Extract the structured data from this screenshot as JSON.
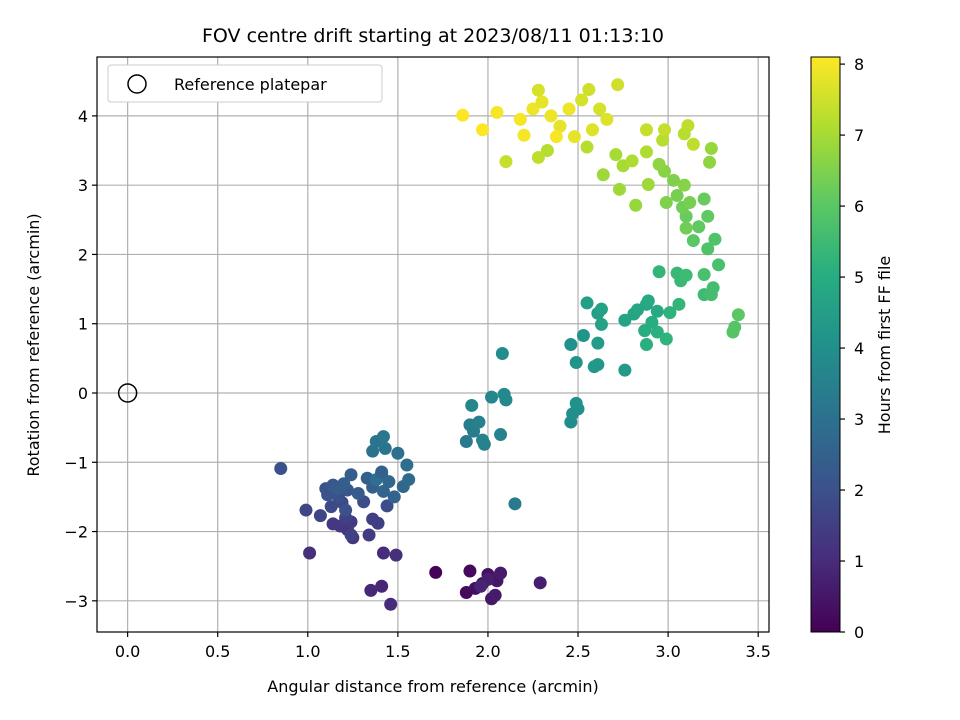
{
  "chart_data": {
    "type": "scatter",
    "title": "FOV centre drift starting at 2023/08/11 01:13:10",
    "xlabel": "Angular distance from reference (arcmin)",
    "ylabel": "Rotation from reference (arcmin)",
    "xlim": [
      -0.17,
      3.56
    ],
    "ylim": [
      -3.45,
      4.85
    ],
    "xticks": [
      0.0,
      0.5,
      1.0,
      1.5,
      2.0,
      2.5,
      3.0,
      3.5
    ],
    "xtick_labels": [
      "0.0",
      "0.5",
      "1.0",
      "1.5",
      "2.0",
      "2.5",
      "3.0",
      "3.5"
    ],
    "yticks": [
      -3,
      -2,
      -1,
      0,
      1,
      2,
      3,
      4
    ],
    "ytick_labels": [
      "−3",
      "−2",
      "−1",
      "0",
      "1",
      "2",
      "3",
      "4"
    ],
    "grid": true,
    "legend": {
      "placement": "top-left",
      "entries": [
        {
          "label": "Reference platepar",
          "marker": "open-circle"
        }
      ]
    },
    "reference": {
      "x": 0.0,
      "y": 0.0
    },
    "colorbar": {
      "label": "Hours from first FF file",
      "colormap": "viridis",
      "range": [
        0,
        8.1
      ],
      "ticks": [
        0,
        1,
        2,
        3,
        4,
        5,
        6,
        7,
        8
      ],
      "tick_labels": [
        "0",
        "1",
        "2",
        "3",
        "4",
        "5",
        "6",
        "7",
        "8"
      ]
    },
    "points": [
      [
        1.71,
        -2.59,
        0.1
      ],
      [
        1.88,
        -2.88,
        0.2
      ],
      [
        1.9,
        -2.57,
        0.2
      ],
      [
        1.93,
        -2.82,
        0.3
      ],
      [
        1.97,
        -2.75,
        0.4
      ],
      [
        2.0,
        -2.62,
        0.4
      ],
      [
        2.02,
        -2.97,
        0.5
      ],
      [
        2.05,
        -2.71,
        0.5
      ],
      [
        2.04,
        -2.92,
        0.6
      ],
      [
        2.07,
        -2.6,
        0.6
      ],
      [
        2.0,
        -2.69,
        0.7
      ],
      [
        2.29,
        -2.74,
        0.7
      ],
      [
        1.96,
        -2.79,
        0.8
      ],
      [
        1.41,
        -2.79,
        0.9
      ],
      [
        1.35,
        -2.85,
        0.9
      ],
      [
        1.46,
        -3.05,
        1.0
      ],
      [
        1.42,
        -2.31,
        1.0
      ],
      [
        1.49,
        -2.34,
        1.1
      ],
      [
        1.01,
        -2.31,
        1.1
      ],
      [
        1.25,
        -2.09,
        1.2
      ],
      [
        1.22,
        -1.97,
        1.2
      ],
      [
        1.14,
        -1.89,
        1.3
      ],
      [
        1.18,
        -1.92,
        1.3
      ],
      [
        1.24,
        -1.86,
        1.4
      ],
      [
        1.34,
        -2.05,
        1.4
      ],
      [
        1.39,
        -1.88,
        1.5
      ],
      [
        1.36,
        -1.82,
        1.5
      ],
      [
        1.24,
        -2.05,
        1.6
      ],
      [
        1.21,
        -1.8,
        1.6
      ],
      [
        0.99,
        -1.69,
        1.7
      ],
      [
        1.07,
        -1.77,
        1.7
      ],
      [
        1.13,
        -1.64,
        1.8
      ],
      [
        1.19,
        -1.58,
        1.8
      ],
      [
        1.31,
        -1.57,
        1.9
      ],
      [
        1.44,
        -1.63,
        1.9
      ],
      [
        1.21,
        -1.69,
        2.0
      ],
      [
        1.17,
        -1.5,
        2.0
      ],
      [
        1.11,
        -1.47,
        2.1
      ],
      [
        1.1,
        -1.38,
        2.1
      ],
      [
        1.14,
        -1.33,
        2.2
      ],
      [
        1.22,
        -1.4,
        2.2
      ],
      [
        1.28,
        -1.45,
        2.3
      ],
      [
        1.16,
        -1.38,
        2.3
      ],
      [
        1.2,
        -1.31,
        2.4
      ],
      [
        1.24,
        -1.18,
        2.4
      ],
      [
        1.33,
        -1.23,
        2.5
      ],
      [
        1.36,
        -1.36,
        2.5
      ],
      [
        1.42,
        -1.42,
        2.6
      ],
      [
        1.48,
        -1.5,
        2.6
      ],
      [
        1.45,
        -1.28,
        2.7
      ],
      [
        1.53,
        -1.35,
        2.7
      ],
      [
        1.56,
        -1.25,
        2.8
      ],
      [
        1.41,
        -1.16,
        2.8
      ],
      [
        1.38,
        -1.25,
        2.9
      ],
      [
        1.55,
        -1.04,
        2.9
      ],
      [
        1.5,
        -0.87,
        3.0
      ],
      [
        1.36,
        -0.84,
        3.0
      ],
      [
        1.43,
        -0.8,
        3.1
      ],
      [
        1.38,
        -0.7,
        3.1
      ],
      [
        1.42,
        -0.63,
        3.2
      ],
      [
        0.85,
        -1.09,
        2.0
      ],
      [
        1.41,
        -1.14,
        2.5
      ],
      [
        2.15,
        -1.6,
        3.3
      ],
      [
        1.88,
        -0.7,
        3.3
      ],
      [
        1.92,
        -0.55,
        3.4
      ],
      [
        1.9,
        -0.46,
        3.4
      ],
      [
        1.95,
        -0.42,
        3.5
      ],
      [
        1.98,
        -0.74,
        3.5
      ],
      [
        2.07,
        -0.6,
        3.6
      ],
      [
        1.97,
        -0.68,
        3.6
      ],
      [
        1.91,
        -0.18,
        3.7
      ],
      [
        2.02,
        -0.06,
        3.7
      ],
      [
        2.09,
        -0.02,
        3.8
      ],
      [
        2.1,
        -0.1,
        3.8
      ],
      [
        2.08,
        0.57,
        3.9
      ],
      [
        2.46,
        -0.42,
        3.9
      ],
      [
        2.47,
        -0.3,
        4.0
      ],
      [
        2.5,
        -0.23,
        4.0
      ],
      [
        2.49,
        -0.15,
        4.1
      ],
      [
        2.46,
        0.7,
        4.1
      ],
      [
        2.53,
        0.83,
        4.2
      ],
      [
        2.49,
        0.44,
        4.2
      ],
      [
        2.59,
        0.38,
        4.3
      ],
      [
        2.61,
        0.41,
        4.3
      ],
      [
        2.61,
        0.72,
        4.4
      ],
      [
        2.76,
        0.33,
        4.4
      ],
      [
        2.55,
        1.3,
        4.5
      ],
      [
        2.61,
        1.15,
        4.5
      ],
      [
        2.63,
        1.21,
        4.6
      ],
      [
        2.63,
        0.99,
        4.6
      ],
      [
        2.76,
        1.05,
        4.7
      ],
      [
        2.81,
        1.14,
        4.7
      ],
      [
        2.83,
        1.2,
        4.8
      ],
      [
        2.88,
        1.28,
        4.8
      ],
      [
        2.89,
        1.33,
        4.9
      ],
      [
        2.94,
        1.18,
        4.9
      ],
      [
        2.91,
        1.02,
        5.0
      ],
      [
        2.87,
        0.9,
        5.0
      ],
      [
        2.94,
        0.88,
        5.1
      ],
      [
        2.88,
        0.7,
        5.1
      ],
      [
        2.99,
        0.78,
        5.2
      ],
      [
        3.01,
        1.16,
        5.2
      ],
      [
        3.06,
        1.28,
        5.3
      ],
      [
        2.95,
        1.75,
        5.3
      ],
      [
        3.05,
        1.73,
        5.4
      ],
      [
        3.07,
        1.62,
        5.4
      ],
      [
        3.1,
        1.7,
        5.5
      ],
      [
        3.2,
        1.42,
        5.5
      ],
      [
        3.24,
        1.42,
        5.6
      ],
      [
        3.25,
        1.52,
        5.6
      ],
      [
        3.2,
        1.71,
        5.7
      ],
      [
        3.28,
        1.85,
        5.7
      ],
      [
        3.22,
        2.08,
        5.8
      ],
      [
        3.26,
        2.22,
        5.8
      ],
      [
        3.36,
        0.88,
        5.9
      ],
      [
        3.37,
        0.95,
        5.9
      ],
      [
        3.39,
        1.13,
        6.0
      ],
      [
        3.14,
        2.2,
        6.0
      ],
      [
        3.17,
        2.4,
        6.1
      ],
      [
        3.22,
        2.55,
        6.1
      ],
      [
        3.2,
        2.8,
        6.2
      ],
      [
        3.1,
        2.55,
        6.2
      ],
      [
        3.08,
        2.68,
        6.3
      ],
      [
        3.1,
        2.38,
        6.3
      ],
      [
        3.12,
        2.75,
        6.4
      ],
      [
        3.05,
        2.85,
        6.4
      ],
      [
        2.99,
        2.75,
        6.5
      ],
      [
        3.03,
        3.07,
        6.5
      ],
      [
        3.09,
        3.0,
        6.6
      ],
      [
        2.98,
        3.2,
        6.6
      ],
      [
        2.95,
        3.3,
        6.7
      ],
      [
        3.23,
        3.33,
        6.7
      ],
      [
        3.24,
        3.53,
        6.8
      ],
      [
        2.82,
        2.71,
        6.8
      ],
      [
        2.73,
        2.94,
        6.9
      ],
      [
        2.89,
        3.01,
        6.9
      ],
      [
        2.75,
        3.28,
        7.0
      ],
      [
        2.71,
        3.44,
        7.0
      ],
      [
        2.8,
        3.35,
        7.1
      ],
      [
        2.88,
        3.48,
        7.1
      ],
      [
        2.97,
        3.65,
        7.2
      ],
      [
        3.09,
        3.74,
        7.2
      ],
      [
        3.11,
        3.86,
        7.3
      ],
      [
        3.14,
        3.59,
        7.3
      ],
      [
        2.88,
        3.8,
        7.4
      ],
      [
        2.98,
        3.8,
        7.4
      ],
      [
        2.72,
        4.45,
        7.5
      ],
      [
        2.56,
        4.38,
        7.5
      ],
      [
        2.52,
        4.23,
        7.6
      ],
      [
        2.62,
        4.1,
        7.6
      ],
      [
        2.66,
        3.95,
        7.7
      ],
      [
        2.58,
        3.8,
        7.7
      ],
      [
        2.48,
        3.7,
        7.8
      ],
      [
        2.4,
        3.85,
        7.8
      ],
      [
        2.35,
        4.0,
        7.9
      ],
      [
        2.25,
        4.1,
        7.9
      ],
      [
        2.18,
        3.95,
        8.0
      ],
      [
        2.05,
        4.05,
        8.0
      ],
      [
        1.97,
        3.8,
        8.1
      ],
      [
        1.86,
        4.01,
        8.1
      ],
      [
        2.1,
        3.34,
        7.4
      ],
      [
        2.28,
        3.4,
        7.3
      ],
      [
        2.33,
        3.5,
        7.2
      ],
      [
        2.55,
        3.55,
        7.2
      ],
      [
        2.64,
        3.15,
        6.9
      ],
      [
        2.28,
        4.37,
        7.6
      ],
      [
        2.3,
        4.2,
        7.8
      ],
      [
        2.45,
        4.1,
        7.9
      ],
      [
        2.38,
        3.7,
        8.0
      ],
      [
        2.2,
        3.72,
        8.0
      ]
    ]
  }
}
